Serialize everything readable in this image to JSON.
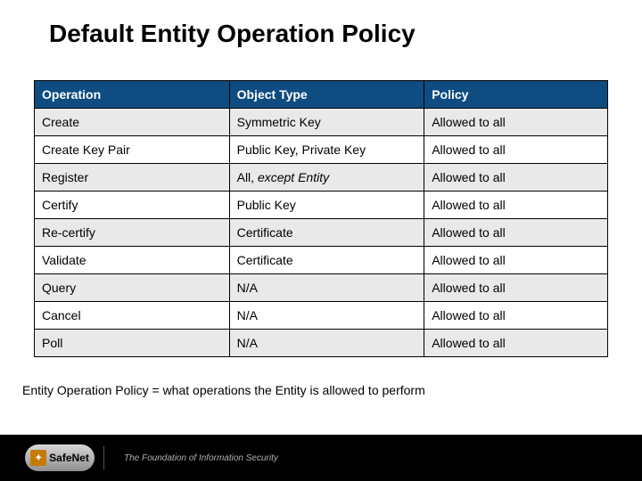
{
  "slide": {
    "title": "Default Entity Operation Policy",
    "caption": "Entity Operation Policy = what operations the Entity is allowed to perform"
  },
  "table": {
    "type": "table",
    "header_bg": "#0f4c81",
    "header_color": "#ffffff",
    "row_alt_bg": "#e9e9e9",
    "row_plain_bg": "#ffffff",
    "border_color": "#000000",
    "font_size_pt": 11,
    "columns": [
      "Operation",
      "Object Type",
      "Policy"
    ],
    "column_widths_pct": [
      34,
      34,
      32
    ],
    "rows": [
      {
        "operation": "Create",
        "object_type": "Symmetric Key",
        "object_type_italic": "",
        "policy": "Allowed to all"
      },
      {
        "operation": "Create Key Pair",
        "object_type": "Public Key, Private Key",
        "object_type_italic": "",
        "policy": "Allowed to all"
      },
      {
        "operation": "Register",
        "object_type": "All, ",
        "object_type_italic": "except Entity",
        "policy": "Allowed to all"
      },
      {
        "operation": "Certify",
        "object_type": "Public Key",
        "object_type_italic": "",
        "policy": "Allowed to all"
      },
      {
        "operation": "Re-certify",
        "object_type": "Certificate",
        "object_type_italic": "",
        "policy": "Allowed to all"
      },
      {
        "operation": "Validate",
        "object_type": "Certificate",
        "object_type_italic": "",
        "policy": "Allowed to all"
      },
      {
        "operation": "Query",
        "object_type": "N/A",
        "object_type_italic": "",
        "policy": "Allowed to all"
      },
      {
        "operation": "Cancel",
        "object_type": "N/A",
        "object_type_italic": "",
        "policy": "Allowed to all"
      },
      {
        "operation": "Poll",
        "object_type": "N/A",
        "object_type_italic": "",
        "policy": "Allowed to all"
      }
    ]
  },
  "footer": {
    "brand_prefix": "Safe",
    "brand_suffix": "Net",
    "tagline": "The Foundation of Information Security",
    "bg": "#000000",
    "tagline_color": "#b0b0b0"
  },
  "colors": {
    "title_color": "#000000",
    "slide_bg": "#ffffff"
  },
  "typography": {
    "title_fontsize": 28,
    "title_weight": "bold",
    "body_fontsize": 14,
    "font_family": "Arial"
  }
}
